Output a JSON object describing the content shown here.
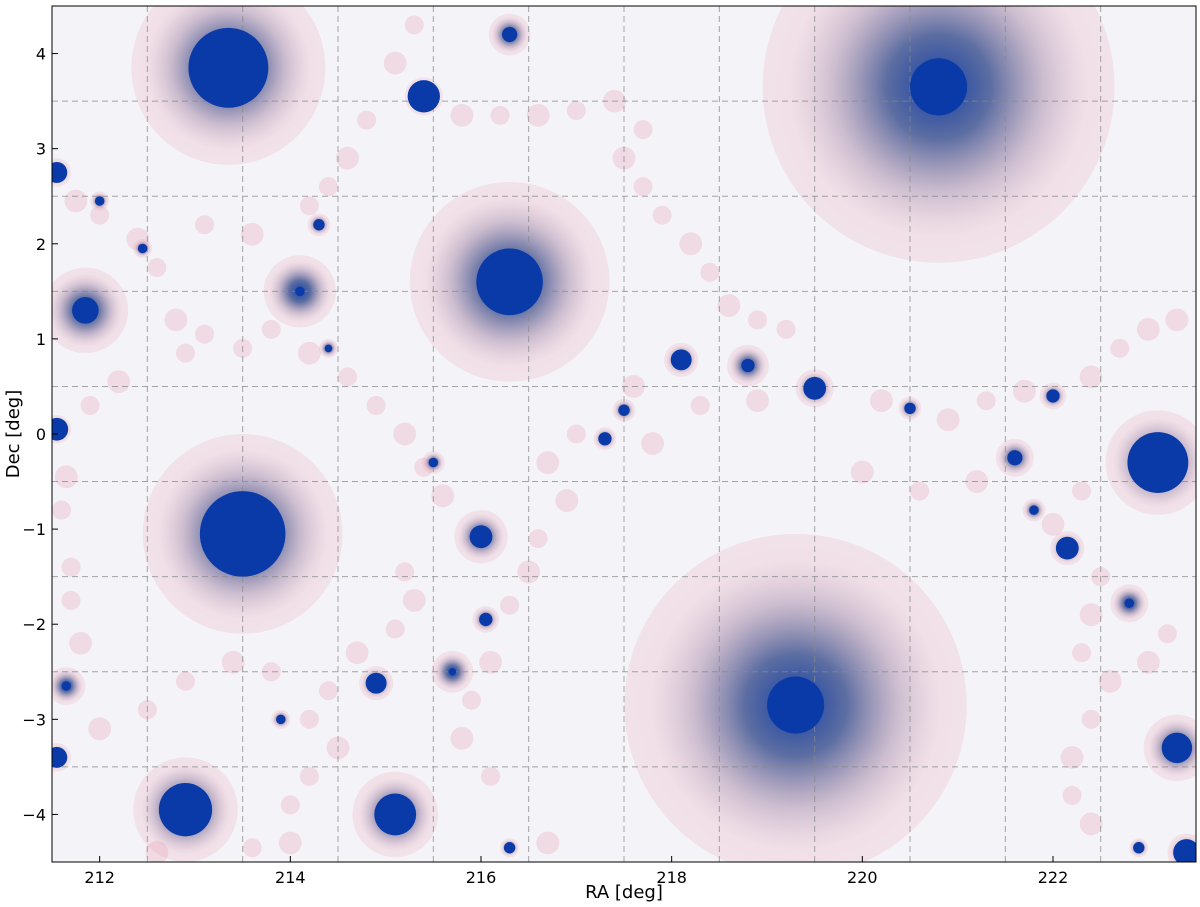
{
  "chart_data": {
    "type": "scatter",
    "title": "",
    "xlabel": "RA [deg]",
    "ylabel": "Dec [deg]",
    "xlim": [
      211.5,
      223.5
    ],
    "ylim": [
      -4.5,
      4.5
    ],
    "xticks": [
      212,
      214,
      216,
      218,
      220,
      222
    ],
    "xtick_labels": [
      "212",
      "214",
      "216",
      "218",
      "220",
      "222"
    ],
    "yticks": [
      -4,
      -3,
      -2,
      -1,
      0,
      1,
      2,
      3,
      4
    ],
    "ytick_labels": [
      "−4",
      "−3",
      "−2",
      "−1",
      "0",
      "1",
      "2",
      "3",
      "4"
    ],
    "grid": true,
    "grid_x": [
      212.5,
      213.5,
      214.5,
      215.5,
      216.5,
      217.5,
      218.5,
      219.5,
      220.5,
      221.5,
      222.5
    ],
    "grid_y": [
      -3.5,
      -2.5,
      -1.5,
      -0.5,
      0.5,
      1.5,
      2.5,
      3.5
    ],
    "colors": {
      "source": "#0a3aa8",
      "mask": "#e8a0b4",
      "background": "#f4f4f8",
      "grid": "#888888"
    },
    "sources": [
      {
        "ra": 213.35,
        "dec": 3.85,
        "core": 0.42,
        "halo": 1.02
      },
      {
        "ra": 220.8,
        "dec": 3.65,
        "core": 0.3,
        "halo": 1.85
      },
      {
        "ra": 216.3,
        "dec": 1.6,
        "core": 0.35,
        "halo": 1.05
      },
      {
        "ra": 213.5,
        "dec": -1.05,
        "core": 0.45,
        "halo": 1.05
      },
      {
        "ra": 219.3,
        "dec": -2.85,
        "core": 0.3,
        "halo": 1.8
      },
      {
        "ra": 223.1,
        "dec": -0.3,
        "core": 0.32,
        "halo": 0.55
      },
      {
        "ra": 212.9,
        "dec": -3.95,
        "core": 0.28,
        "halo": 0.55
      },
      {
        "ra": 215.1,
        "dec": -4.0,
        "core": 0.22,
        "halo": 0.45
      },
      {
        "ra": 216.3,
        "dec": 4.2,
        "core": 0.08,
        "halo": 0.22
      },
      {
        "ra": 211.85,
        "dec": 1.3,
        "core": 0.14,
        "halo": 0.45
      },
      {
        "ra": 215.4,
        "dec": 3.55,
        "core": 0.17,
        "halo": 0.2
      },
      {
        "ra": 216.0,
        "dec": -1.08,
        "core": 0.12,
        "halo": 0.28
      },
      {
        "ra": 223.3,
        "dec": -3.3,
        "core": 0.16,
        "halo": 0.35
      },
      {
        "ra": 219.5,
        "dec": 0.48,
        "core": 0.12,
        "halo": 0.2
      },
      {
        "ra": 218.1,
        "dec": 0.78,
        "core": 0.11,
        "halo": 0.18
      },
      {
        "ra": 211.55,
        "dec": 0.05,
        "core": 0.12,
        "halo": 0.15
      },
      {
        "ra": 211.55,
        "dec": 2.75,
        "core": 0.11,
        "halo": 0.15
      },
      {
        "ra": 211.55,
        "dec": -3.4,
        "core": 0.11,
        "halo": 0.15
      },
      {
        "ra": 214.9,
        "dec": -2.62,
        "core": 0.11,
        "halo": 0.18
      },
      {
        "ra": 222.15,
        "dec": -1.2,
        "core": 0.12,
        "halo": 0.18
      },
      {
        "ra": 223.4,
        "dec": -4.4,
        "core": 0.14,
        "halo": 0.2
      },
      {
        "ra": 214.1,
        "dec": 1.5,
        "core": 0.05,
        "halo": 0.38
      },
      {
        "ra": 218.8,
        "dec": 0.72,
        "core": 0.07,
        "halo": 0.22
      },
      {
        "ra": 221.6,
        "dec": -0.25,
        "core": 0.08,
        "halo": 0.2
      },
      {
        "ra": 222.8,
        "dec": -1.78,
        "core": 0.05,
        "halo": 0.2
      },
      {
        "ra": 211.65,
        "dec": -2.65,
        "core": 0.05,
        "halo": 0.2
      },
      {
        "ra": 215.7,
        "dec": -2.5,
        "core": 0.04,
        "halo": 0.22
      },
      {
        "ra": 222.0,
        "dec": 0.4,
        "core": 0.07,
        "halo": 0.14
      },
      {
        "ra": 217.3,
        "dec": -0.05,
        "core": 0.07,
        "halo": 0.12
      },
      {
        "ra": 220.5,
        "dec": 0.27,
        "core": 0.06,
        "halo": 0.12
      },
      {
        "ra": 216.05,
        "dec": -1.95,
        "core": 0.07,
        "halo": 0.14
      },
      {
        "ra": 212.0,
        "dec": 2.45,
        "core": 0.05,
        "halo": 0.1
      },
      {
        "ra": 214.3,
        "dec": 2.2,
        "core": 0.06,
        "halo": 0.12
      },
      {
        "ra": 212.45,
        "dec": 1.95,
        "core": 0.05,
        "halo": 0.1
      },
      {
        "ra": 217.5,
        "dec": 0.25,
        "core": 0.06,
        "halo": 0.12
      },
      {
        "ra": 213.9,
        "dec": -3.0,
        "core": 0.05,
        "halo": 0.1
      },
      {
        "ra": 222.9,
        "dec": -4.35,
        "core": 0.06,
        "halo": 0.1
      },
      {
        "ra": 216.3,
        "dec": -4.35,
        "core": 0.06,
        "halo": 0.1
      },
      {
        "ra": 214.4,
        "dec": 0.9,
        "core": 0.04,
        "halo": 0.1
      },
      {
        "ra": 215.5,
        "dec": -0.3,
        "core": 0.05,
        "halo": 0.12
      },
      {
        "ra": 221.8,
        "dec": -0.8,
        "core": 0.05,
        "halo": 0.12
      }
    ],
    "masks": [
      {
        "ra": 211.75,
        "dec": 2.45,
        "r": 0.12
      },
      {
        "ra": 212.0,
        "dec": 2.3,
        "r": 0.1
      },
      {
        "ra": 212.4,
        "dec": 2.05,
        "r": 0.12
      },
      {
        "ra": 212.6,
        "dec": 1.75,
        "r": 0.1
      },
      {
        "ra": 212.8,
        "dec": 1.2,
        "r": 0.12
      },
      {
        "ra": 212.9,
        "dec": 0.85,
        "r": 0.1
      },
      {
        "ra": 213.1,
        "dec": 1.05,
        "r": 0.1
      },
      {
        "ra": 213.5,
        "dec": 0.9,
        "r": 0.1
      },
      {
        "ra": 213.8,
        "dec": 1.1,
        "r": 0.1
      },
      {
        "ra": 214.2,
        "dec": 0.85,
        "r": 0.12
      },
      {
        "ra": 214.6,
        "dec": 0.6,
        "r": 0.1
      },
      {
        "ra": 214.9,
        "dec": 0.3,
        "r": 0.1
      },
      {
        "ra": 215.2,
        "dec": 0.0,
        "r": 0.12
      },
      {
        "ra": 215.4,
        "dec": -0.35,
        "r": 0.1
      },
      {
        "ra": 215.6,
        "dec": -0.65,
        "r": 0.12
      },
      {
        "ra": 215.2,
        "dec": -1.45,
        "r": 0.1
      },
      {
        "ra": 215.3,
        "dec": -1.75,
        "r": 0.12
      },
      {
        "ra": 215.1,
        "dec": -2.05,
        "r": 0.1
      },
      {
        "ra": 214.7,
        "dec": -2.3,
        "r": 0.12
      },
      {
        "ra": 214.4,
        "dec": -2.7,
        "r": 0.1
      },
      {
        "ra": 214.2,
        "dec": -3.0,
        "r": 0.1
      },
      {
        "ra": 214.5,
        "dec": -3.3,
        "r": 0.12
      },
      {
        "ra": 214.2,
        "dec": -3.6,
        "r": 0.1
      },
      {
        "ra": 214.0,
        "dec": -3.9,
        "r": 0.1
      },
      {
        "ra": 213.8,
        "dec": -2.5,
        "r": 0.1
      },
      {
        "ra": 213.4,
        "dec": -2.4,
        "r": 0.12
      },
      {
        "ra": 212.9,
        "dec": -2.6,
        "r": 0.1
      },
      {
        "ra": 212.5,
        "dec": -2.9,
        "r": 0.1
      },
      {
        "ra": 212.0,
        "dec": -3.1,
        "r": 0.12
      },
      {
        "ra": 211.8,
        "dec": -2.2,
        "r": 0.12
      },
      {
        "ra": 211.7,
        "dec": -1.75,
        "r": 0.1
      },
      {
        "ra": 211.7,
        "dec": -1.4,
        "r": 0.1
      },
      {
        "ra": 211.6,
        "dec": -0.8,
        "r": 0.1
      },
      {
        "ra": 211.65,
        "dec": -0.45,
        "r": 0.12
      },
      {
        "ra": 211.9,
        "dec": 0.3,
        "r": 0.1
      },
      {
        "ra": 212.2,
        "dec": 0.55,
        "r": 0.12
      },
      {
        "ra": 215.8,
        "dec": 3.35,
        "r": 0.12
      },
      {
        "ra": 216.2,
        "dec": 3.35,
        "r": 0.1
      },
      {
        "ra": 216.6,
        "dec": 3.35,
        "r": 0.12
      },
      {
        "ra": 217.0,
        "dec": 3.4,
        "r": 0.1
      },
      {
        "ra": 217.4,
        "dec": 3.5,
        "r": 0.12
      },
      {
        "ra": 217.7,
        "dec": 3.2,
        "r": 0.1
      },
      {
        "ra": 217.5,
        "dec": 2.9,
        "r": 0.12
      },
      {
        "ra": 217.7,
        "dec": 2.6,
        "r": 0.1
      },
      {
        "ra": 217.9,
        "dec": 2.3,
        "r": 0.1
      },
      {
        "ra": 218.2,
        "dec": 2.0,
        "r": 0.12
      },
      {
        "ra": 218.4,
        "dec": 1.7,
        "r": 0.1
      },
      {
        "ra": 218.6,
        "dec": 1.35,
        "r": 0.12
      },
      {
        "ra": 218.9,
        "dec": 1.2,
        "r": 0.1
      },
      {
        "ra": 219.2,
        "dec": 1.1,
        "r": 0.1
      },
      {
        "ra": 220.2,
        "dec": 0.35,
        "r": 0.12
      },
      {
        "ra": 220.9,
        "dec": 0.15,
        "r": 0.12
      },
      {
        "ra": 221.3,
        "dec": 0.35,
        "r": 0.1
      },
      {
        "ra": 221.7,
        "dec": 0.45,
        "r": 0.12
      },
      {
        "ra": 222.4,
        "dec": 0.6,
        "r": 0.12
      },
      {
        "ra": 222.7,
        "dec": 0.9,
        "r": 0.1
      },
      {
        "ra": 223.0,
        "dec": 1.1,
        "r": 0.12
      },
      {
        "ra": 223.3,
        "dec": 1.2,
        "r": 0.12
      },
      {
        "ra": 222.3,
        "dec": -0.6,
        "r": 0.1
      },
      {
        "ra": 222.0,
        "dec": -0.95,
        "r": 0.12
      },
      {
        "ra": 222.5,
        "dec": -1.5,
        "r": 0.1
      },
      {
        "ra": 222.4,
        "dec": -1.9,
        "r": 0.12
      },
      {
        "ra": 222.3,
        "dec": -2.3,
        "r": 0.1
      },
      {
        "ra": 222.6,
        "dec": -2.6,
        "r": 0.12
      },
      {
        "ra": 222.4,
        "dec": -3.0,
        "r": 0.1
      },
      {
        "ra": 222.2,
        "dec": -3.4,
        "r": 0.12
      },
      {
        "ra": 222.2,
        "dec": -3.8,
        "r": 0.1
      },
      {
        "ra": 222.4,
        "dec": -4.1,
        "r": 0.12
      },
      {
        "ra": 223.2,
        "dec": -2.1,
        "r": 0.1
      },
      {
        "ra": 223.0,
        "dec": -2.4,
        "r": 0.12
      },
      {
        "ra": 217.8,
        "dec": -0.1,
        "r": 0.12
      },
      {
        "ra": 218.3,
        "dec": 0.3,
        "r": 0.1
      },
      {
        "ra": 217.6,
        "dec": 0.5,
        "r": 0.12
      },
      {
        "ra": 217.0,
        "dec": 0.0,
        "r": 0.1
      },
      {
        "ra": 216.7,
        "dec": -0.3,
        "r": 0.12
      },
      {
        "ra": 216.9,
        "dec": -0.7,
        "r": 0.12
      },
      {
        "ra": 216.6,
        "dec": -1.1,
        "r": 0.1
      },
      {
        "ra": 216.5,
        "dec": -1.45,
        "r": 0.12
      },
      {
        "ra": 216.3,
        "dec": -1.8,
        "r": 0.1
      },
      {
        "ra": 216.1,
        "dec": -2.4,
        "r": 0.12
      },
      {
        "ra": 215.9,
        "dec": -2.8,
        "r": 0.1
      },
      {
        "ra": 215.8,
        "dec": -3.2,
        "r": 0.12
      },
      {
        "ra": 216.1,
        "dec": -3.6,
        "r": 0.1
      },
      {
        "ra": 215.3,
        "dec": 4.3,
        "r": 0.1
      },
      {
        "ra": 215.1,
        "dec": 3.9,
        "r": 0.12
      },
      {
        "ra": 214.8,
        "dec": 3.3,
        "r": 0.1
      },
      {
        "ra": 214.6,
        "dec": 2.9,
        "r": 0.12
      },
      {
        "ra": 214.4,
        "dec": 2.6,
        "r": 0.1
      },
      {
        "ra": 214.2,
        "dec": 2.4,
        "r": 0.1
      },
      {
        "ra": 213.6,
        "dec": 2.1,
        "r": 0.12
      },
      {
        "ra": 213.1,
        "dec": 2.2,
        "r": 0.1
      },
      {
        "ra": 220.0,
        "dec": -0.4,
        "r": 0.12
      },
      {
        "ra": 220.6,
        "dec": -0.6,
        "r": 0.1
      },
      {
        "ra": 221.2,
        "dec": -0.5,
        "r": 0.12
      },
      {
        "ra": 218.9,
        "dec": 0.35,
        "r": 0.12
      },
      {
        "ra": 212.6,
        "dec": -4.4,
        "r": 0.12
      },
      {
        "ra": 213.6,
        "dec": -4.35,
        "r": 0.1
      },
      {
        "ra": 214.0,
        "dec": -4.3,
        "r": 0.12
      },
      {
        "ra": 216.7,
        "dec": -4.3,
        "r": 0.12
      }
    ]
  }
}
